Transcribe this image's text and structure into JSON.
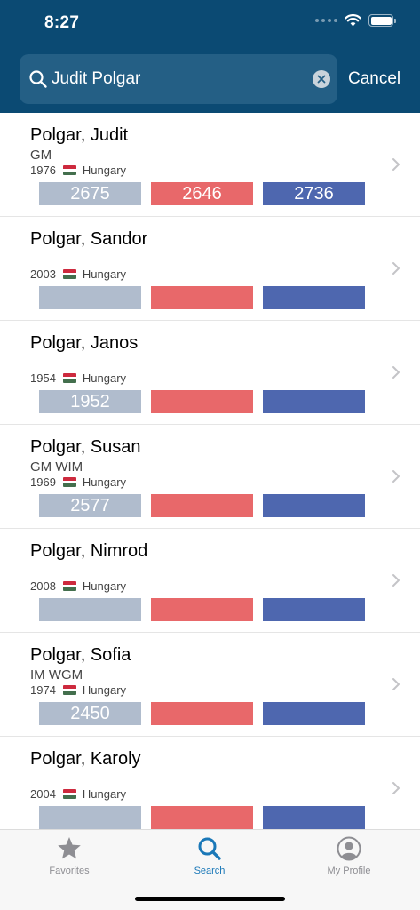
{
  "status": {
    "time": "8:27"
  },
  "search": {
    "value": "Judit Polgar",
    "cancel_label": "Cancel"
  },
  "players": [
    {
      "name": "Polgar, Judit",
      "title": "GM",
      "year": "1976",
      "country": "Hungary",
      "standard": "2675",
      "rapid": "2646",
      "blitz": "2736"
    },
    {
      "name": "Polgar, Sandor",
      "title": "",
      "year": "2003",
      "country": "Hungary",
      "standard": "",
      "rapid": "",
      "blitz": ""
    },
    {
      "name": "Polgar, Janos",
      "title": "",
      "year": "1954",
      "country": "Hungary",
      "standard": "1952",
      "rapid": "",
      "blitz": ""
    },
    {
      "name": "Polgar, Susan",
      "title": "GM WIM",
      "year": "1969",
      "country": "Hungary",
      "standard": "2577",
      "rapid": "",
      "blitz": ""
    },
    {
      "name": "Polgar, Nimrod",
      "title": "",
      "year": "2008",
      "country": "Hungary",
      "standard": "",
      "rapid": "",
      "blitz": ""
    },
    {
      "name": "Polgar, Sofia",
      "title": "IM WGM",
      "year": "1974",
      "country": "Hungary",
      "standard": "2450",
      "rapid": "",
      "blitz": ""
    },
    {
      "name": "Polgar, Karoly",
      "title": "",
      "year": "2004",
      "country": "Hungary",
      "standard": "",
      "rapid": "",
      "blitz": ""
    }
  ],
  "tabs": [
    {
      "label": "Favorites",
      "icon": "star-icon"
    },
    {
      "label": "Search",
      "icon": "search-icon"
    },
    {
      "label": "My Profile",
      "icon": "profile-icon"
    }
  ],
  "colors": {
    "header": "#0b4a73",
    "standard": "#b0bccd",
    "rapid": "#e8686a",
    "blitz": "#4e67af",
    "active_tab": "#1a78b8",
    "flag": [
      "#cd2a3e",
      "#ffffff",
      "#436f4d"
    ]
  }
}
